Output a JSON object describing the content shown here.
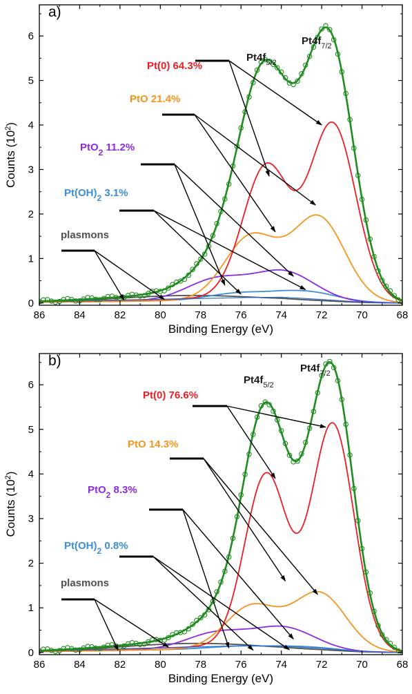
{
  "colors": {
    "envelope": "#1e8c1e",
    "pt0": "#ee1c24",
    "pto": "#f7941d",
    "pto2": "#8b2be2",
    "ptoh2": "#3b8fd6",
    "plasmons": "#505050"
  },
  "chart_data": [
    {
      "type": "line",
      "panel_label": "a)",
      "xlabel": "Binding Energy (eV)",
      "ylabel": "Counts (10",
      "ylabel_sup": "2",
      "ylabel_end": ")",
      "xlim": [
        86,
        68
      ],
      "ylim": [
        -0.05,
        6.7
      ],
      "x_ticks": [
        86,
        84,
        82,
        80,
        78,
        76,
        74,
        72,
        70,
        68
      ],
      "x_tick_labels": [
        "86",
        "84",
        "82",
        "80",
        "78",
        "76",
        "74",
        "72",
        "70",
        "68"
      ],
      "y_ticks": [
        0,
        1,
        2,
        3,
        4,
        5,
        6
      ],
      "y_tick_labels": [
        "0",
        "1",
        "2",
        "3",
        "4",
        "5",
        "6"
      ],
      "peak_labels": {
        "f52_main": "Pt4f",
        "f52_sub": "5/2",
        "f72_main": "Pt4f",
        "f72_sub": "7/2"
      },
      "components": [
        {
          "key": "pt0",
          "label": "Pt(0) 64.3%",
          "label_main": "Pt(0) 64.3%",
          "label_sub": "",
          "label_rest": "",
          "peaks": [
            {
              "center": 71.45,
              "height": 3.95,
              "width": 1.15
            },
            {
              "center": 74.75,
              "height": 2.95,
              "width": 1.15
            }
          ]
        },
        {
          "key": "pto",
          "label": "PtO 21.4%",
          "label_main": "PtO 21.4%",
          "label_sub": "",
          "label_rest": "",
          "peaks": [
            {
              "center": 72.15,
              "height": 1.87,
              "width": 1.3
            },
            {
              "center": 75.5,
              "height": 1.42,
              "width": 1.3
            }
          ]
        },
        {
          "key": "pto2",
          "label": "PtO2 11.2%",
          "label_main": "PtO",
          "label_sub": "2",
          "label_rest": " 11.2%",
          "peaks": [
            {
              "center": 73.85,
              "height": 0.62,
              "width": 1.5
            },
            {
              "center": 77.2,
              "height": 0.47,
              "width": 1.5
            }
          ]
        },
        {
          "key": "ptoh2",
          "label": "Pt(OH)2 3.1%",
          "label_main": "Pt(OH)",
          "label_sub": "2",
          "label_rest": " 3.1%",
          "peaks": [
            {
              "center": 72.8,
              "height": 0.2,
              "width": 1.5
            },
            {
              "center": 76.1,
              "height": 0.15,
              "width": 1.5
            }
          ]
        },
        {
          "key": "plasmons",
          "label": "plasmons",
          "label_main": "plasmons",
          "label_sub": "",
          "label_rest": "",
          "peaks": [
            {
              "center": 80.3,
              "height": 0.07,
              "width": 2.8
            },
            {
              "center": 77.5,
              "height": 0.06,
              "width": 2.5
            }
          ]
        }
      ],
      "background": [
        {
          "x": 86,
          "y": 0.03
        },
        {
          "x": 80,
          "y": 0.08
        },
        {
          "x": 76,
          "y": 0.12
        },
        {
          "x": 74,
          "y": 0.13
        },
        {
          "x": 72,
          "y": 0.08
        },
        {
          "x": 70,
          "y": 0.02
        },
        {
          "x": 68,
          "y": 0.0
        }
      ]
    },
    {
      "type": "line",
      "panel_label": "b)",
      "xlabel": "Binding Energy (eV)",
      "ylabel": "Counts (10",
      "ylabel_sup": "2",
      "ylabel_end": ")",
      "xlim": [
        86,
        68
      ],
      "ylim": [
        -0.05,
        6.7
      ],
      "x_ticks": [
        86,
        84,
        82,
        80,
        78,
        76,
        74,
        72,
        70,
        68
      ],
      "x_tick_labels": [
        "86",
        "84",
        "82",
        "80",
        "78",
        "76",
        "74",
        "72",
        "70",
        "68"
      ],
      "y_ticks": [
        0,
        1,
        2,
        3,
        4,
        5,
        6
      ],
      "y_tick_labels": [
        "0",
        "1",
        "2",
        "3",
        "4",
        "5",
        "6"
      ],
      "peak_labels": {
        "f52_main": "Pt4f",
        "f52_sub": "5/2",
        "f72_main": "Pt4f",
        "f72_sub": "7/2"
      },
      "components": [
        {
          "key": "pt0",
          "label": "Pt(0) 76.6%",
          "label_main": "Pt(0) 76.6%",
          "label_sub": "",
          "label_rest": "",
          "peaks": [
            {
              "center": 71.45,
              "height": 5.05,
              "width": 1.05
            },
            {
              "center": 74.75,
              "height": 3.85,
              "width": 1.05
            }
          ]
        },
        {
          "key": "pto",
          "label": "PtO 14.3%",
          "label_main": "PtO 14.3%",
          "label_sub": "",
          "label_rest": "",
          "peaks": [
            {
              "center": 72.1,
              "height": 1.27,
              "width": 1.3
            },
            {
              "center": 75.45,
              "height": 0.95,
              "width": 1.3
            }
          ]
        },
        {
          "key": "pto2",
          "label": "PtO2 8.3%",
          "label_main": "PtO",
          "label_sub": "2",
          "label_rest": " 8.3%",
          "peaks": [
            {
              "center": 73.85,
              "height": 0.47,
              "width": 1.5
            },
            {
              "center": 77.2,
              "height": 0.36,
              "width": 1.5
            }
          ]
        },
        {
          "key": "ptoh2",
          "label": "Pt(OH)2 0.8%",
          "label_main": "Pt(OH)",
          "label_sub": "2",
          "label_rest": " 0.8%",
          "peaks": [
            {
              "center": 72.8,
              "height": 0.06,
              "width": 1.5
            },
            {
              "center": 76.1,
              "height": 0.05,
              "width": 1.5
            }
          ]
        },
        {
          "key": "plasmons",
          "label": "plasmons",
          "label_main": "plasmons",
          "label_sub": "",
          "label_rest": "",
          "peaks": [
            {
              "center": 80.2,
              "height": 0.08,
              "width": 2.8
            },
            {
              "center": 77.4,
              "height": 0.07,
              "width": 2.5
            }
          ]
        }
      ],
      "background": [
        {
          "x": 86,
          "y": 0.03
        },
        {
          "x": 80,
          "y": 0.1
        },
        {
          "x": 76,
          "y": 0.15
        },
        {
          "x": 74,
          "y": 0.14
        },
        {
          "x": 72,
          "y": 0.09
        },
        {
          "x": 70,
          "y": 0.02
        },
        {
          "x": 68,
          "y": 0.0
        }
      ]
    }
  ]
}
